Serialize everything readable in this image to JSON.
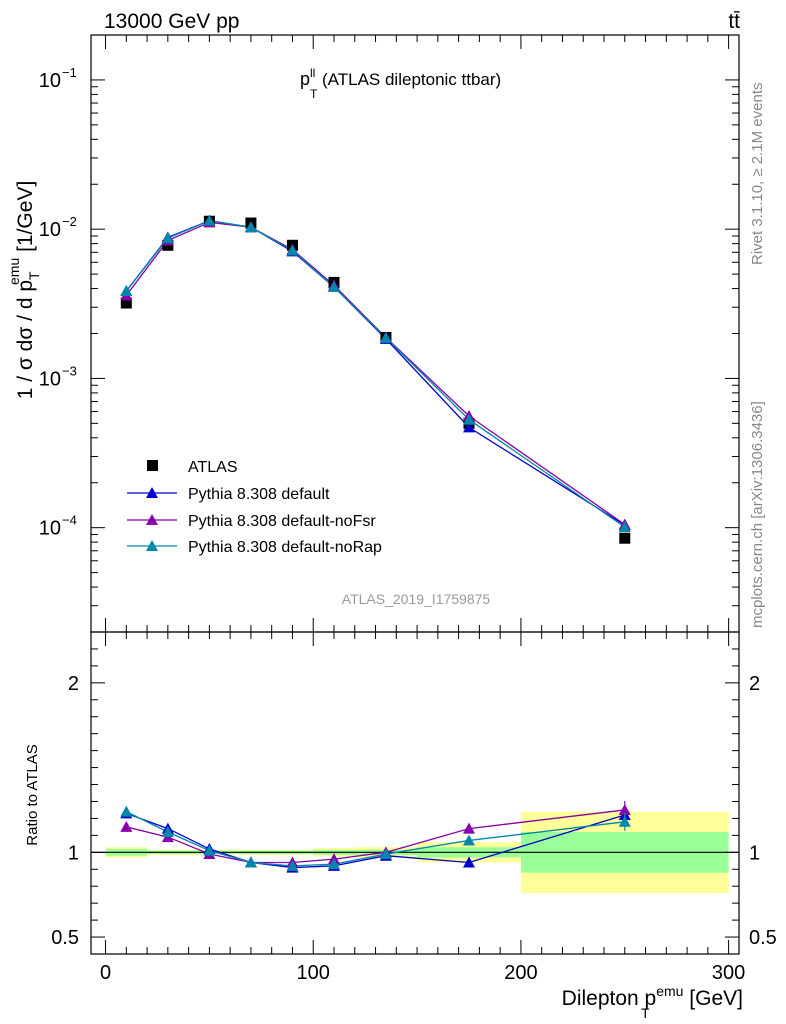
{
  "header": {
    "left": "13000 GeV pp",
    "right": "tt̄"
  },
  "side_text": {
    "rivet": "Rivet 3.1.10, ≥ 2.1M events",
    "mcplots": "mcplots.cern.ch [arXiv:1306.3436]"
  },
  "chart_data": [
    {
      "type": "scatter",
      "title_main": "p",
      "title_sup": "ll",
      "title_sub": "T",
      "title_rest": " (ATLAS dileptonic ttbar)",
      "analysis_label": "ATLAS_2019_I1759875",
      "ylabel": "1 / σ  dσ / d p",
      "ylabel_sup": "emu",
      "ylabel_sub": "T",
      "ylabel_unit": " [1/GeV]",
      "yscale": "log",
      "ylim": [
        2e-05,
        0.2
      ],
      "xlim": [
        -7,
        305
      ],
      "y_ticks": [
        {
          "value": 0.1,
          "base": "10",
          "exp": "−1"
        },
        {
          "value": 0.01,
          "base": "10",
          "exp": "−2"
        },
        {
          "value": 0.001,
          "base": "10",
          "exp": "−3"
        },
        {
          "value": 0.0001,
          "base": "10",
          "exp": "−4"
        }
      ],
      "x": [
        10,
        30,
        50,
        70,
        90,
        110,
        135,
        175,
        250
      ],
      "series": [
        {
          "name": "ATLAS",
          "marker": "square",
          "color": "#000000",
          "values": [
            0.0032,
            0.0078,
            0.0113,
            0.011,
            0.0078,
            0.0044,
            0.00188,
            0.0005,
            8.5e-05
          ]
        },
        {
          "name": "Pythia 8.308 default",
          "marker": "triangle",
          "color": "#0000cc",
          "values": [
            0.00385,
            0.0088,
            0.0114,
            0.0103,
            0.0071,
            0.0041,
            0.00184,
            0.00047,
            0.000104
          ]
        },
        {
          "name": "Pythia 8.308 default-noFsr",
          "marker": "triangle",
          "color": "#8800aa",
          "values": [
            0.0036,
            0.0084,
            0.0111,
            0.0103,
            0.0073,
            0.0042,
            0.00188,
            0.00056,
            0.000105
          ]
        },
        {
          "name": "Pythia 8.308 default-noRap",
          "marker": "triangle",
          "color": "#0088aa",
          "values": [
            0.00385,
            0.0087,
            0.0114,
            0.0103,
            0.0072,
            0.0041,
            0.00187,
            0.00053,
            0.000101
          ]
        }
      ]
    },
    {
      "type": "line",
      "ylabel": "Ratio to ATLAS",
      "xlabel": "Dilepton p",
      "xlabel_sup": "emu",
      "xlabel_sub": "T",
      "xlabel_unit": " [GeV]",
      "ylim": [
        0.4,
        2.3
      ],
      "xlim": [
        -7,
        305
      ],
      "x_ticks": [
        0,
        100,
        200,
        300
      ],
      "y_ticks": [
        0.5,
        1,
        2
      ],
      "bands": [
        {
          "x0": 0,
          "x1": 20,
          "inner": 0.02,
          "outer": 0.03
        },
        {
          "x0": 20,
          "x1": 40,
          "inner": 0.01,
          "outer": 0.015
        },
        {
          "x0": 40,
          "x1": 60,
          "inner": 0.01,
          "outer": 0.015
        },
        {
          "x0": 60,
          "x1": 80,
          "inner": 0.01,
          "outer": 0.015
        },
        {
          "x0": 80,
          "x1": 100,
          "inner": 0.01,
          "outer": 0.015
        },
        {
          "x0": 100,
          "x1": 120,
          "inner": 0.015,
          "outer": 0.025
        },
        {
          "x0": 120,
          "x1": 150,
          "inner": 0.015,
          "outer": 0.03
        },
        {
          "x0": 150,
          "x1": 200,
          "inner": 0.03,
          "outer": 0.06
        },
        {
          "x0": 200,
          "x1": 300,
          "inner": 0.12,
          "outer": 0.24
        }
      ],
      "x": [
        10,
        30,
        50,
        70,
        90,
        110,
        135,
        175,
        250
      ],
      "series": [
        {
          "name": "Pythia 8.308 default",
          "color": "#0000cc",
          "values": [
            1.23,
            1.14,
            1.02,
            0.94,
            0.91,
            0.92,
            0.98,
            0.94,
            1.22
          ]
        },
        {
          "name": "Pythia 8.308 default-noFsr",
          "color": "#8800aa",
          "values": [
            1.15,
            1.09,
            0.99,
            0.94,
            0.94,
            0.96,
            1.0,
            1.14,
            1.25
          ]
        },
        {
          "name": "Pythia 8.308 default-noRap",
          "color": "#0088aa",
          "values": [
            1.24,
            1.12,
            1.01,
            0.94,
            0.92,
            0.93,
            0.99,
            1.07,
            1.18
          ]
        }
      ]
    }
  ]
}
